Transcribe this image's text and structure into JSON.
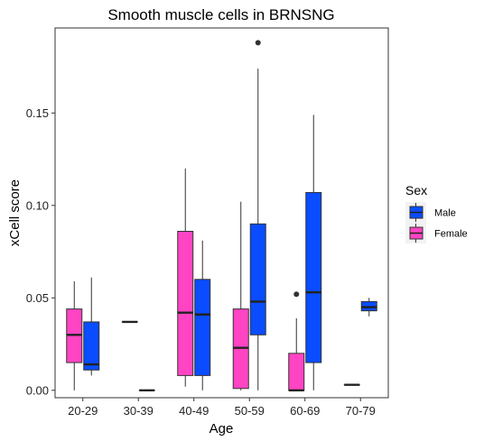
{
  "chart_data": {
    "type": "boxplot",
    "title": "Smooth muscle cells in BRNSNG",
    "xlabel": "Age",
    "ylabel": "xCell score",
    "categories": [
      "20-29",
      "30-39",
      "40-49",
      "50-59",
      "60-69",
      "70-79"
    ],
    "yticks": [
      0.0,
      0.05,
      0.1,
      0.15
    ],
    "ytick_labels": [
      "0.00",
      "0.05",
      "0.10",
      "0.15"
    ],
    "ylim": [
      -0.004,
      0.196
    ],
    "grid": false,
    "legend_title": "Sex",
    "legend_placement": "right",
    "series": [
      {
        "name": "Male",
        "color": "#0a4cff",
        "boxes": [
          {
            "category": "20-29",
            "min": 0.008,
            "q1": 0.011,
            "median": 0.014,
            "q3": 0.037,
            "max": 0.061,
            "outliers": []
          },
          {
            "category": "30-39",
            "min": 0.0,
            "q1": 0.0,
            "median": 0.0,
            "q3": 0.0,
            "max": 0.0,
            "outliers": []
          },
          {
            "category": "40-49",
            "min": 0.0,
            "q1": 0.008,
            "median": 0.041,
            "q3": 0.06,
            "max": 0.081,
            "outliers": []
          },
          {
            "category": "50-59",
            "min": 0.0,
            "q1": 0.03,
            "median": 0.048,
            "q3": 0.09,
            "max": 0.174,
            "outliers": [
              0.188
            ]
          },
          {
            "category": "60-69",
            "min": 0.0,
            "q1": 0.015,
            "median": 0.053,
            "q3": 0.107,
            "max": 0.149,
            "outliers": []
          },
          {
            "category": "70-79",
            "min": 0.04,
            "q1": 0.043,
            "median": 0.045,
            "q3": 0.048,
            "max": 0.05,
            "outliers": []
          }
        ]
      },
      {
        "name": "Female",
        "color": "#ff44c4",
        "boxes": [
          {
            "category": "20-29",
            "min": 0.0,
            "q1": 0.015,
            "median": 0.03,
            "q3": 0.044,
            "max": 0.059,
            "outliers": []
          },
          {
            "category": "30-39",
            "min": 0.037,
            "q1": 0.037,
            "median": 0.037,
            "q3": 0.037,
            "max": 0.037,
            "outliers": []
          },
          {
            "category": "40-49",
            "min": 0.002,
            "q1": 0.008,
            "median": 0.042,
            "q3": 0.086,
            "max": 0.12,
            "outliers": []
          },
          {
            "category": "50-59",
            "min": 0.0,
            "q1": 0.001,
            "median": 0.023,
            "q3": 0.044,
            "max": 0.102,
            "outliers": []
          },
          {
            "category": "60-69",
            "min": 0.0,
            "q1": 0.0,
            "median": 0.0,
            "q3": 0.02,
            "max": 0.039,
            "outliers": [
              0.052
            ]
          },
          {
            "category": "70-79",
            "min": 0.003,
            "q1": 0.003,
            "median": 0.003,
            "q3": 0.003,
            "max": 0.003,
            "outliers": []
          }
        ]
      }
    ]
  }
}
